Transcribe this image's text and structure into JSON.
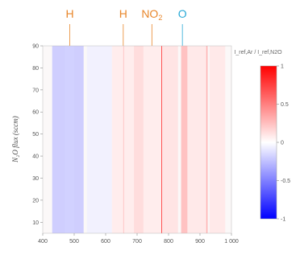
{
  "chart_data": {
    "type": "heatmap",
    "title": "",
    "xlabel": "",
    "ylabel": "N₂O flux (sccm)",
    "xlim": [
      400,
      1000
    ],
    "ylim": [
      5,
      90
    ],
    "x_ticks": [
      "400",
      "500",
      "600",
      "700",
      "800",
      "900",
      "1 000"
    ],
    "y_ticks": [
      "10",
      "20",
      "30",
      "40",
      "50",
      "60",
      "70",
      "80",
      "90"
    ],
    "colorbar": {
      "title": "I_ref,Ar / I_ref,N2O",
      "range": [
        -1,
        1
      ],
      "ticks": [
        "1",
        "0.5",
        "0",
        "-0.5",
        "-1"
      ],
      "colors": [
        "#0000ff",
        "#ffffff",
        "#ff0000"
      ]
    },
    "peak_labels": [
      {
        "text": "H",
        "x": 486,
        "color": "#e8862a"
      },
      {
        "text": "H",
        "x": 656,
        "color": "#e8862a"
      },
      {
        "text": "NO",
        "sub": "2",
        "x": 747,
        "color": "#e8862a"
      },
      {
        "text": "O",
        "x": 844,
        "color": "#29a9d6"
      }
    ],
    "bands": [
      {
        "x0": 430,
        "x1": 530,
        "value": -0.22
      },
      {
        "x0": 470,
        "x1": 500,
        "value": -0.18
      },
      {
        "x0": 540,
        "x1": 620,
        "value": -0.06
      },
      {
        "x0": 620,
        "x1": 780,
        "value": 0.08
      },
      {
        "x0": 656,
        "x1": 658,
        "value": 0.25
      },
      {
        "x0": 690,
        "x1": 720,
        "value": 0.15
      },
      {
        "x0": 777,
        "x1": 779,
        "value": 0.8
      },
      {
        "x0": 780,
        "x1": 830,
        "value": 0.12
      },
      {
        "x0": 840,
        "x1": 860,
        "value": 0.28
      },
      {
        "x0": 860,
        "x1": 920,
        "value": 0.1
      },
      {
        "x0": 920,
        "x1": 924,
        "value": 0.35
      },
      {
        "x0": 930,
        "x1": 980,
        "value": 0.1
      }
    ]
  }
}
